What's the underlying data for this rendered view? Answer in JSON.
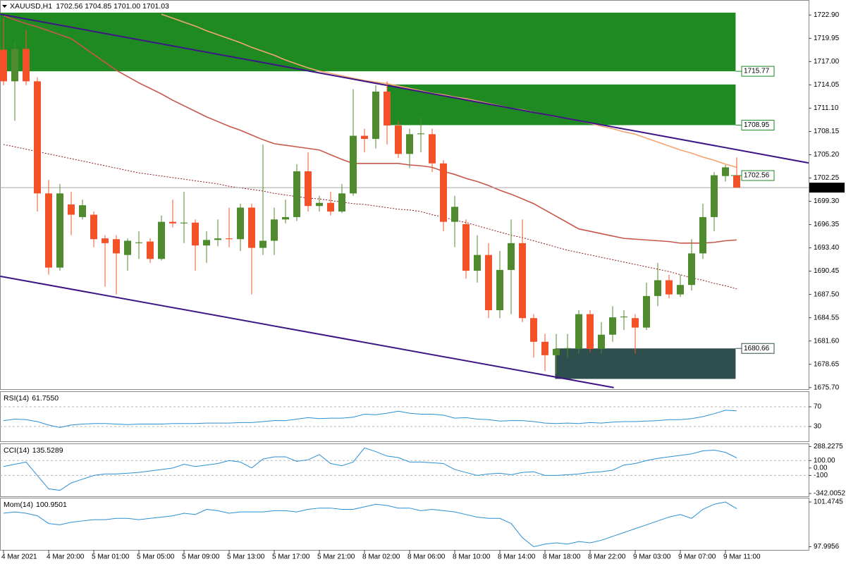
{
  "chart_data": [
    {
      "type": "candlestick",
      "title": "XAUUSD,H1",
      "quote": "1702.56 1704.85 1701.00 1701.03",
      "categories": [
        "4 Mar 2021",
        null,
        null,
        null,
        "4 Mar 20:00",
        null,
        null,
        null,
        "5 Mar 01:00",
        null,
        null,
        null,
        "5 Mar 05:00",
        null,
        null,
        null,
        "5 Mar 09:00",
        null,
        null,
        null,
        "5 Mar 13:00",
        null,
        null,
        null,
        "5 Mar 17:00",
        null,
        null,
        null,
        "5 Mar 21:00",
        null,
        null,
        null,
        "8 Mar 02:00",
        null,
        null,
        null,
        "8 Mar 06:00",
        null,
        null,
        null,
        "8 Mar 10:00",
        null,
        null,
        null,
        "8 Mar 14:00",
        null,
        null,
        null,
        "8 Mar 18:00",
        null,
        null,
        null,
        "8 Mar 22:00",
        null,
        null,
        null,
        "9 Mar 03:00",
        null,
        null,
        null,
        "9 Mar 07:00",
        null,
        null,
        null,
        "9 Mar 11:00",
        null
      ],
      "open": [
        1718.5,
        1714.5,
        1718.6,
        1714.5,
        1700.3,
        1690.9,
        1698.9,
        1697.3,
        1697.6,
        1694.6,
        1694.5,
        1692.5,
        1694.0,
        1694.2,
        1692.0,
        1696.7,
        1696.5,
        1696.6,
        1693.7,
        1694.4,
        1694.6,
        1694.5,
        1698.5,
        1693.4,
        1694.3,
        1697.0,
        1697.3,
        1703.1,
        1698.7,
        1699.1,
        1698.0,
        1700.3,
        1707.6,
        1707.2,
        1713.2,
        1708.9,
        1705.3,
        1707.8,
        1707.8,
        1704.1,
        1696.7,
        1696.4,
        1690.5,
        1692.5,
        1685.5,
        1690.6,
        1694.0,
        1684.5,
        1681.5,
        1679.8,
        1680.6,
        1680.6,
        1685.0,
        1680.6,
        1682.4,
        1684.6,
        1684.5,
        1683.3,
        1687.3,
        1689.3,
        1687.5,
        1688.7,
        1692.7,
        1697.3,
        1702.5,
        1702.56
      ],
      "high": [
        1722.5,
        1719.5,
        1721.0,
        1715.0,
        1702.0,
        1701.5,
        1700.5,
        1699.5,
        1698.0,
        1695.0,
        1695.0,
        1694.6,
        1695.5,
        1694.6,
        1697.5,
        1699.5,
        1700.5,
        1697.0,
        1695.5,
        1697.0,
        1698.5,
        1699.0,
        1699.0,
        1706.5,
        1698.5,
        1699.5,
        1704.0,
        1705.5,
        1700.0,
        1700.5,
        1701.5,
        1713.5,
        1708.5,
        1714.0,
        1714.5,
        1709.5,
        1708.5,
        1710.0,
        1708.5,
        1704.5,
        1700.0,
        1697.0,
        1695.0,
        1694.0,
        1693.0,
        1697.0,
        1697.0,
        1685.0,
        1682.5,
        1682.5,
        1682.5,
        1685.5,
        1685.5,
        1684.0,
        1686.0,
        1685.5,
        1685.0,
        1689.0,
        1691.5,
        1690.0,
        1690.0,
        1694.5,
        1699.0,
        1703.0,
        1703.9,
        1704.85
      ],
      "low": [
        1714.0,
        1709.5,
        1714.0,
        1698.0,
        1690.0,
        1690.5,
        1695.0,
        1697.0,
        1693.5,
        1688.5,
        1687.5,
        1690.5,
        1692.0,
        1691.5,
        1691.8,
        1696.0,
        1694.0,
        1690.5,
        1691.5,
        1693.6,
        1693.5,
        1693.0,
        1687.5,
        1692.5,
        1692.5,
        1696.5,
        1696.8,
        1698.0,
        1698.0,
        1697.5,
        1697.8,
        1700.0,
        1705.5,
        1706.0,
        1706.5,
        1704.8,
        1703.5,
        1705.5,
        1703.0,
        1695.5,
        1693.5,
        1689.5,
        1689.0,
        1684.5,
        1684.5,
        1685.0,
        1684.0,
        1679.5,
        1677.8,
        1677.5,
        1679.5,
        1680.0,
        1680.2,
        1680.0,
        1681.5,
        1683.0,
        1680.0,
        1683.0,
        1686.0,
        1687.0,
        1687.2,
        1688.0,
        1692.0,
        1695.5,
        1701.8,
        1701.0
      ],
      "close": [
        1714.5,
        1718.6,
        1714.5,
        1700.3,
        1690.9,
        1700.3,
        1697.6,
        1698.8,
        1694.5,
        1694.0,
        1692.7,
        1694.3,
        1694.1,
        1692.0,
        1696.7,
        1696.5,
        1696.6,
        1693.7,
        1694.4,
        1694.6,
        1694.5,
        1698.5,
        1693.4,
        1694.3,
        1697.0,
        1697.3,
        1703.1,
        1698.7,
        1699.1,
        1698.0,
        1700.3,
        1707.6,
        1707.2,
        1713.2,
        1708.9,
        1705.3,
        1707.8,
        1707.9,
        1704.1,
        1696.7,
        1698.6,
        1690.5,
        1692.5,
        1685.5,
        1690.6,
        1694.0,
        1684.5,
        1681.5,
        1679.8,
        1680.6,
        1680.7,
        1685.0,
        1680.6,
        1682.4,
        1684.6,
        1684.7,
        1683.3,
        1687.3,
        1689.3,
        1687.5,
        1688.7,
        1692.7,
        1697.3,
        1702.6,
        1703.6,
        1701.03
      ],
      "up_color": "#4f8a2e",
      "down_color": "#f2522a",
      "ylim": [
        1675.5,
        1724.8
      ],
      "yticks": [
        {
          "value": 1722.9,
          "label": "1722.90"
        },
        1719.95,
        {
          "value": 1717,
          "label": "1717.00"
        },
        1714.05,
        {
          "value": 1711.1,
          "label": "1711.10"
        },
        1708.15,
        {
          "value": 1705.2,
          "label": "1705.20"
        },
        1702.25,
        {
          "value": 1699.3,
          "label": "1699.30"
        },
        1696.35,
        {
          "value": 1693.4,
          "label": "1693.40"
        },
        1690.45,
        {
          "value": 1687.5,
          "label": "1687.50"
        },
        1684.55,
        {
          "value": 1681.6,
          "label": "1681.60"
        },
        1678.65,
        {
          "value": 1675.7,
          "label": "1675.70"
        }
      ],
      "overlays": [
        {
          "color": "#f4a572",
          "dashed": false,
          "values": [
            null,
            null,
            null,
            null,
            null,
            null,
            null,
            null,
            null,
            null,
            null,
            null,
            null,
            null,
            1723.0,
            1722.5,
            1722.0,
            1721.5,
            1720.9,
            1720.4,
            1719.9,
            1719.4,
            1718.8,
            1718.3,
            1717.8,
            1717.2,
            1716.7,
            1716.2,
            1715.8,
            1715.5,
            1715.2,
            1714.9,
            1714.6,
            1714.4,
            1714.2,
            1713.9,
            1713.6,
            1713.3,
            1713.0,
            1712.8,
            1712.5,
            1712.3,
            1712.0,
            1711.7,
            1711.4,
            1711.1,
            1710.9,
            1710.6,
            1710.3,
            1710.0,
            1709.8,
            1709.5,
            1709.2,
            1708.8,
            1708.5,
            1708.1,
            1707.8,
            1707.3,
            1706.8,
            1706.3,
            1705.8,
            1705.4,
            1704.9,
            1704.5,
            1704.0,
            1703.6
          ]
        },
        {
          "color": "#c8574a",
          "dashed": false,
          "values": [
            1722.8,
            1722.3,
            1721.8,
            1721.4,
            1720.9,
            1720.4,
            1719.9,
            1718.9,
            1717.9,
            1716.9,
            1715.9,
            1715.1,
            1714.3,
            1713.6,
            1712.9,
            1712.1,
            1711.4,
            1710.7,
            1710.0,
            1709.4,
            1708.8,
            1708.3,
            1707.7,
            1707.1,
            1706.6,
            1706.4,
            1706.2,
            1706.0,
            1705.8,
            1705.2,
            1704.6,
            1704.1,
            1704.1,
            1704.1,
            1704.1,
            1704.1,
            1703.9,
            1703.8,
            1703.6,
            1703.1,
            1702.7,
            1702.2,
            1701.8,
            1701.3,
            1700.7,
            1700.2,
            1699.6,
            1699.0,
            1698.2,
            1697.4,
            1696.6,
            1695.8,
            1695.5,
            1695.2,
            1694.9,
            1694.6,
            1694.5,
            1694.4,
            1694.3,
            1694.2,
            1694.0,
            1694.0,
            1694.0,
            1694.1,
            1694.3,
            1694.4
          ]
        },
        {
          "color": "#8b1a1a",
          "dashed": true,
          "values": [
            1706.5,
            1706.2,
            1705.9,
            1705.6,
            1705.3,
            1705.0,
            1704.7,
            1704.4,
            1704.1,
            1703.8,
            1703.5,
            1703.2,
            1702.9,
            1702.7,
            1702.5,
            1702.3,
            1702.1,
            1701.9,
            1701.7,
            1701.5,
            1701.2,
            1701.0,
            1700.8,
            1700.6,
            1700.3,
            1700.1,
            1699.9,
            1699.7,
            1699.6,
            1699.4,
            1699.2,
            1699.0,
            1698.9,
            1698.7,
            1698.5,
            1698.3,
            1698.2,
            1698.0,
            1697.6,
            1697.3,
            1696.9,
            1696.6,
            1696.2,
            1695.8,
            1695.4,
            1695.0,
            1694.7,
            1694.3,
            1693.9,
            1693.5,
            1693.1,
            1692.8,
            1692.5,
            1692.2,
            1691.9,
            1691.6,
            1691.3,
            1691.0,
            1690.7,
            1690.4,
            1690.0,
            1689.6,
            1689.3,
            1688.9,
            1688.6,
            1688.2
          ]
        }
      ],
      "trendlines": [
        {
          "color": "#3d1585",
          "x": [
            -0.3,
            71.6
          ],
          "y": [
            1723.0,
            1704.1
          ]
        },
        {
          "color": "#3d1585",
          "x": [
            -0.3,
            54.1
          ],
          "y": [
            1689.8,
            1675.7
          ]
        }
      ],
      "zones": [
        {
          "color": "#1f8a22",
          "x": [
            -0.3,
            64.9
          ],
          "top": 1723.2,
          "bottom": 1715.77,
          "tag": "bottom"
        },
        {
          "color": "#1f8a22",
          "x": [
            34,
            64.9
          ],
          "top": 1714.1,
          "bottom": 1708.95,
          "tag": "bottom"
        },
        {
          "color": "#2f4f4f",
          "x": [
            48.9,
            64.9
          ],
          "top": 1680.66,
          "bottom": 1676.8,
          "tag": "top"
        }
      ],
      "open_line_color": "#1f8a22",
      "bid_line_color": "#a8a8a8"
    },
    {
      "type": "line",
      "title": "RSI(14)",
      "value_label": "61.7550",
      "color": "#2b8fd4",
      "values": [
        42,
        45,
        44,
        40,
        33,
        28,
        33,
        35,
        36,
        36,
        35,
        34,
        35,
        35,
        35,
        36,
        36,
        36,
        37,
        37,
        37,
        38,
        38,
        40,
        42,
        42,
        45,
        48,
        46,
        47,
        47,
        49,
        55,
        54,
        57,
        61,
        57,
        55,
        55,
        53,
        47,
        48,
        45,
        44,
        41,
        42,
        42,
        40,
        37,
        36,
        37,
        36,
        38,
        37,
        39,
        40,
        40,
        41,
        42,
        44,
        44,
        46,
        50,
        56,
        63,
        61.755
      ],
      "ylim": [
        0,
        100
      ],
      "yticks": [
        70,
        30
      ],
      "levels": [
        70,
        30
      ]
    },
    {
      "type": "line",
      "title": "CCI(14)",
      "color": "#2b8fd4",
      "values": [
        20,
        50,
        80,
        -100,
        -280,
        -300,
        -200,
        -150,
        -100,
        -80,
        -80,
        -70,
        -60,
        -40,
        -20,
        0,
        50,
        20,
        40,
        60,
        100,
        80,
        0,
        120,
        150,
        150,
        90,
        110,
        180,
        60,
        30,
        80,
        270,
        220,
        160,
        140,
        80,
        80,
        70,
        60,
        -20,
        -60,
        -100,
        -80,
        -70,
        -90,
        -60,
        -50,
        -100,
        -100,
        -90,
        -80,
        -60,
        -50,
        -30,
        40,
        60,
        100,
        130,
        150,
        170,
        190,
        230,
        240,
        210,
        135.5289
      ],
      "ylim": [
        -380,
        320
      ],
      "yticks": [
        288.2275,
        {
          "value": 100,
          "label": "100.00"
        },
        {
          "value": 0,
          "label": "0.00"
        },
        -100,
        -342.0052
      ],
      "levels": [
        100,
        -100
      ]
    },
    {
      "type": "line",
      "title": "Mom(14)",
      "color": "#2b8fd4",
      "values": [
        100.6,
        100.7,
        100.6,
        100.4,
        99.8,
        99.7,
        99.9,
        100.0,
        100.1,
        100.1,
        100.2,
        100.2,
        100.1,
        100.2,
        100.3,
        100.4,
        100.6,
        100.5,
        100.9,
        100.8,
        100.6,
        100.7,
        100.7,
        100.7,
        100.8,
        100.8,
        100.7,
        100.9,
        101.0,
        101.0,
        100.9,
        100.9,
        101.1,
        101.3,
        101.2,
        101.0,
        101.0,
        100.8,
        100.9,
        100.8,
        100.7,
        100.5,
        100.3,
        100.2,
        100.2,
        99.8,
        98.7,
        97.9956,
        98.2,
        98.3,
        98.2,
        98.4,
        98.3,
        98.5,
        98.8,
        99.1,
        99.4,
        99.7,
        100.0,
        100.3,
        100.5,
        100.2,
        100.9,
        101.3,
        101.4745,
        100.9501
      ],
      "ylim": [
        97.75,
        101.75
      ],
      "yticks": [
        101.4745,
        97.9956
      ],
      "levels": []
    }
  ]
}
